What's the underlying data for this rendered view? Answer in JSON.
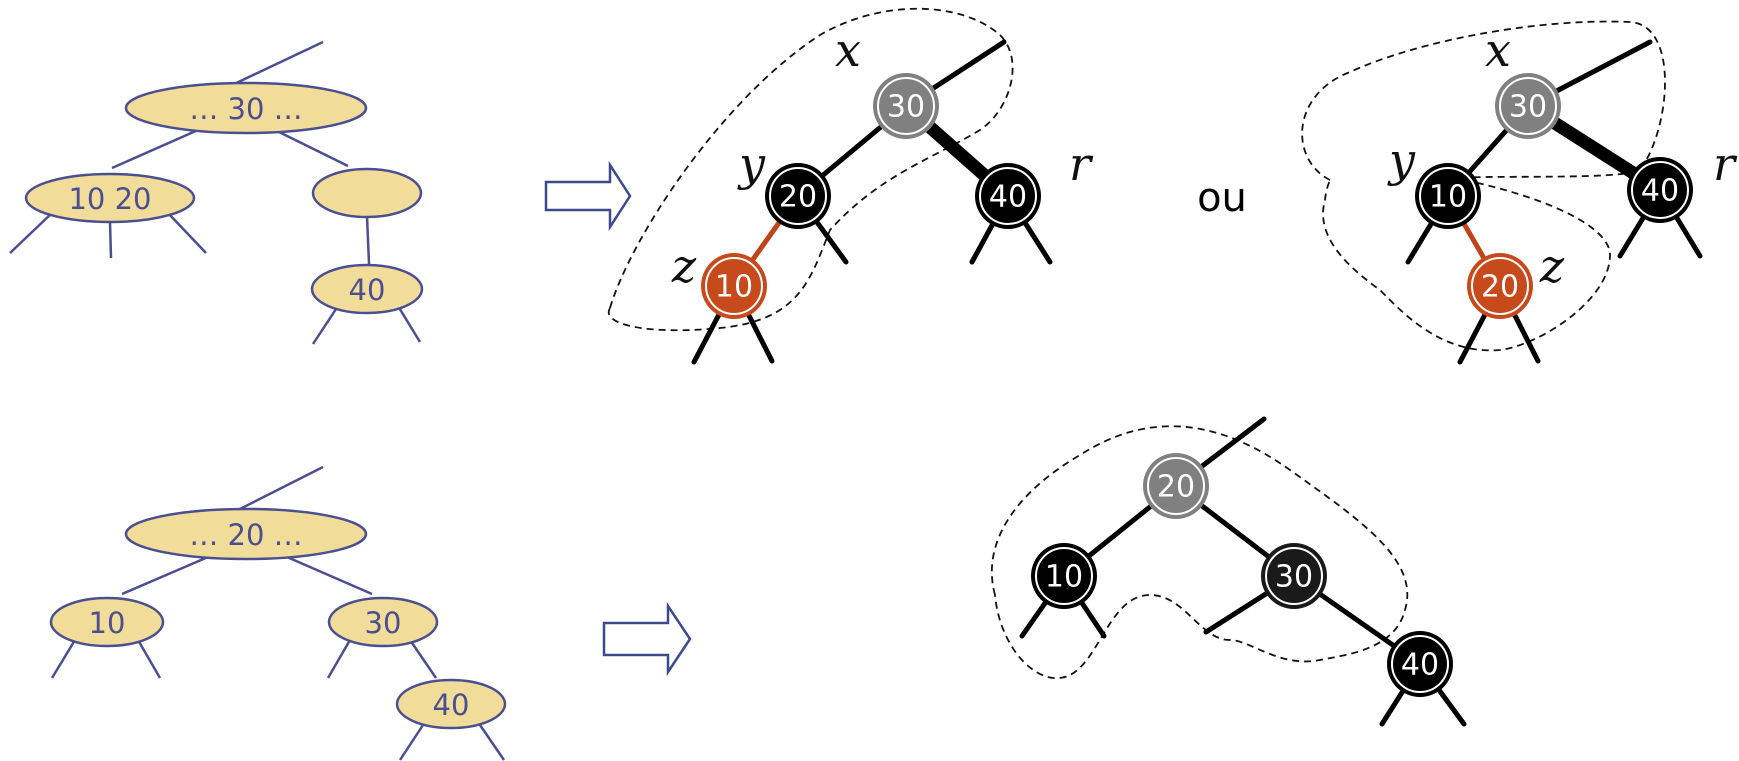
{
  "colors": {
    "btree_fill": "#f1dc9a",
    "btree_stroke": "#4b4f8f",
    "rb_black": "#000000",
    "rb_red": "#c64a1c",
    "rb_gray": "#808080",
    "arrow_stroke": "#3b4a8c"
  },
  "top": {
    "btree": {
      "root": "… 30 …",
      "left": "10  20",
      "right": "",
      "right_child": "40"
    },
    "rb_option1": {
      "x_node": "30",
      "y_node": "20",
      "z_node": "10",
      "r_node": "40",
      "x_label": "x",
      "y_label": "y",
      "z_label": "z",
      "r_label": "r"
    },
    "or_text": "ou",
    "rb_option2": {
      "x_node": "30",
      "y_node": "10",
      "z_node": "20",
      "r_node": "40",
      "x_label": "x",
      "y_label": "y",
      "z_label": "z",
      "r_label": "r"
    }
  },
  "bottom": {
    "btree": {
      "root": "… 20 …",
      "left": "10",
      "right": "30",
      "right_child": "40"
    },
    "rb": {
      "root": "20",
      "left": "10",
      "right": "30",
      "right_child": "40"
    }
  }
}
